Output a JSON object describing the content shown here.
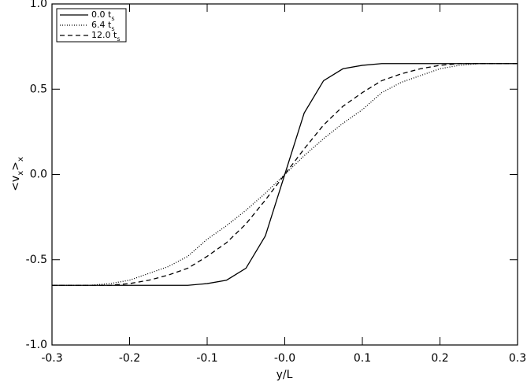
{
  "chart_data": {
    "type": "line",
    "xlabel": "y/L",
    "ylabel_parts": [
      {
        "text": "<v"
      },
      {
        "text": "x",
        "sub": true
      },
      {
        "text": ">"
      },
      {
        "text": "x",
        "sub": true
      }
    ],
    "x": [
      -0.3,
      -0.275,
      -0.25,
      -0.225,
      -0.2,
      -0.175,
      -0.15,
      -0.125,
      -0.1,
      -0.075,
      -0.05,
      -0.025,
      0,
      0.025,
      0.05,
      0.075,
      0.1,
      0.125,
      0.15,
      0.175,
      0.2,
      0.225,
      0.25,
      0.275,
      0.3
    ],
    "series": [
      {
        "name": "0.0 t",
        "name_sub": "s",
        "color": "#000000",
        "style": "solid",
        "values": [
          -0.65,
          -0.65,
          -0.65,
          -0.65,
          -0.65,
          -0.65,
          -0.65,
          -0.65,
          -0.64,
          -0.62,
          -0.55,
          -0.36,
          0,
          0.36,
          0.55,
          0.62,
          0.64,
          0.65,
          0.65,
          0.65,
          0.65,
          0.65,
          0.65,
          0.65,
          0.65
        ]
      },
      {
        "name": "6.4 t",
        "name_sub": "s",
        "color": "#000000",
        "style": "dotted",
        "values": [
          -0.65,
          -0.65,
          -0.65,
          -0.64,
          -0.62,
          -0.58,
          -0.54,
          -0.48,
          -0.38,
          -0.3,
          -0.21,
          -0.11,
          0,
          0.11,
          0.21,
          0.3,
          0.38,
          0.48,
          0.54,
          0.58,
          0.62,
          0.64,
          0.65,
          0.65,
          0.65
        ]
      },
      {
        "name": "12.0 t",
        "name_sub": "s",
        "color": "#000000",
        "style": "dashed",
        "values": [
          -0.65,
          -0.65,
          -0.65,
          -0.65,
          -0.64,
          -0.62,
          -0.59,
          -0.55,
          -0.48,
          -0.4,
          -0.29,
          -0.15,
          0,
          0.15,
          0.29,
          0.4,
          0.48,
          0.55,
          0.59,
          0.62,
          0.64,
          0.65,
          0.65,
          0.65,
          0.65
        ]
      }
    ],
    "xlim": [
      -0.3,
      0.3
    ],
    "ylim": [
      -1.0,
      1.0
    ],
    "xticks": [
      -0.3,
      -0.2,
      -0.1,
      {
        "value": 0,
        "label": "-0.0"
      },
      0.1,
      0.2,
      0.3
    ],
    "yticks": [
      {
        "value": -1.0,
        "label": "-1.0"
      },
      {
        "value": -0.5,
        "label": "-0.5"
      },
      {
        "value": 0,
        "label": "0.0"
      },
      {
        "value": 0.5,
        "label": "0.5"
      },
      {
        "value": 1.0,
        "label": "1.0"
      }
    ],
    "legend": "upper-left"
  }
}
